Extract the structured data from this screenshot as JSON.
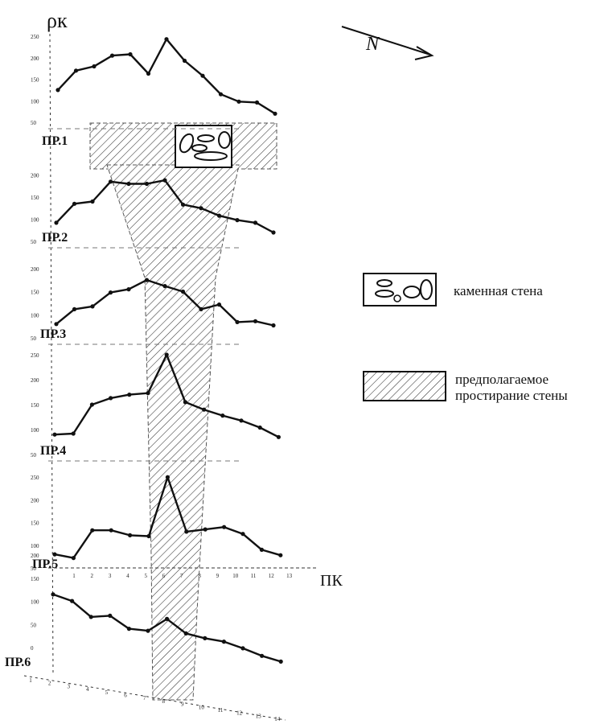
{
  "chart_data": {
    "type": "line",
    "title": "",
    "ylabel": "ρк",
    "xlabel": "ПК",
    "north_label": "N",
    "legend": {
      "stone_wall": "каменная стена",
      "wall_extent_line1": "предполагаемое",
      "wall_extent_line2": "простирание стены"
    },
    "x": [
      1,
      2,
      3,
      4,
      5,
      6,
      7,
      8,
      9,
      10,
      11,
      12,
      13
    ],
    "profiles": [
      {
        "name": "ПР.1",
        "ylim": [
          50,
          250
        ],
        "ticks": [
          "50",
          "100",
          "150",
          "200",
          "250"
        ],
        "values": [
          125,
          170,
          180,
          205,
          208,
          163,
          243,
          193,
          158,
          115,
          98,
          96,
          70
        ]
      },
      {
        "name": "ПР.2",
        "ylim": [
          50,
          250
        ],
        "ticks": [
          "50",
          "100",
          "150",
          "200"
        ],
        "values": [
          92,
          135,
          140,
          185,
          180,
          180,
          188,
          133,
          125,
          108,
          98,
          92,
          70
        ]
      },
      {
        "name": "ПР.3",
        "ylim": [
          50,
          250
        ],
        "ticks": [
          "50",
          "100",
          "150",
          "200"
        ],
        "values": [
          80,
          112,
          118,
          148,
          155,
          175,
          162,
          150,
          112,
          122,
          84,
          86,
          77
        ]
      },
      {
        "name": "ПР.4",
        "ylim": [
          50,
          300
        ],
        "ticks": [
          "50",
          "100",
          "150",
          "200",
          "250"
        ],
        "values": [
          90,
          92,
          150,
          163,
          170,
          173,
          250,
          155,
          140,
          128,
          118,
          104,
          85
        ]
      },
      {
        "name": "ПР.5",
        "ylim": [
          50,
          300
        ],
        "ticks": [
          "50",
          "100",
          "150",
          "200",
          "250"
        ],
        "values": [
          80,
          72,
          133,
          133,
          122,
          120,
          250,
          130,
          135,
          140,
          125,
          90,
          78
        ]
      },
      {
        "name": "ПР.6",
        "ylim": [
          0,
          200
        ],
        "ticks": [
          "0",
          "50",
          "100",
          "150",
          "200"
        ],
        "values": [
          115,
          105,
          75,
          82,
          58,
          58,
          88,
          61,
          55,
          52,
          42,
          30,
          22
        ]
      }
    ],
    "axis_ticks_bottom": [
      "1",
      "2",
      "3",
      "4",
      "5",
      "6",
      "7",
      "8",
      "9",
      "10",
      "11",
      "12",
      "13"
    ],
    "axis_ticks_skewed": [
      "1",
      "2",
      "3",
      "4",
      "5",
      "6",
      "7",
      "8",
      "9",
      "10",
      "11",
      "12",
      "13",
      "14"
    ],
    "hatch_region": "estimated wall extent"
  }
}
